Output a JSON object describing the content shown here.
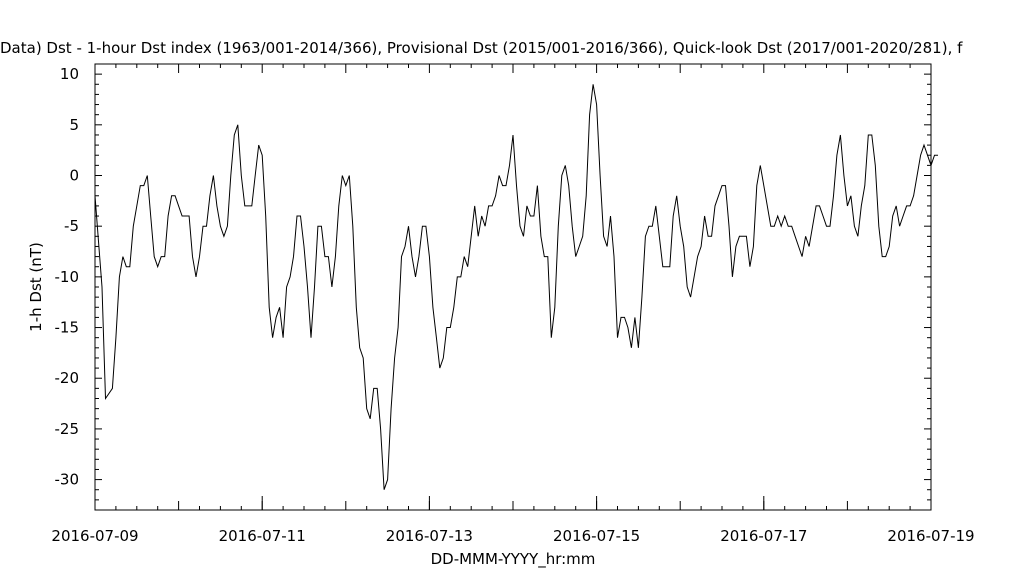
{
  "chart_data": {
    "type": "line",
    "title": "Data)  Dst - 1-hour Dst index (1963/001-2014/366), Provisional Dst (2015/001-2016/366), Quick-look Dst (2017/001-2020/281), f",
    "xlabel": "DD-MMM-YYYY_hr:mm",
    "ylabel": "1-h Dst (nT)",
    "x_range": [
      "2016-07-09",
      "2016-07-19"
    ],
    "ylim": [
      -33,
      11
    ],
    "x_ticks": [
      "2016-07-09",
      "2016-07-11",
      "2016-07-13",
      "2016-07-15",
      "2016-07-17",
      "2016-07-19"
    ],
    "y_ticks": [
      10,
      5,
      0,
      -5,
      -10,
      -15,
      -20,
      -25,
      -30
    ],
    "grid": false,
    "series": [
      {
        "color": "#000000",
        "points": [
          [
            "2016-07-09 00:00",
            -2
          ],
          [
            "2016-07-09 02:00",
            -11
          ],
          [
            "2016-07-09 03:00",
            -22
          ],
          [
            "2016-07-09 05:00",
            -21
          ],
          [
            "2016-07-09 06:00",
            -16
          ],
          [
            "2016-07-09 07:00",
            -10
          ],
          [
            "2016-07-09 08:00",
            -8
          ],
          [
            "2016-07-09 09:00",
            -9
          ],
          [
            "2016-07-09 10:00",
            -9
          ],
          [
            "2016-07-09 11:00",
            -5
          ],
          [
            "2016-07-09 12:00",
            -3
          ],
          [
            "2016-07-09 13:00",
            -1
          ],
          [
            "2016-07-09 14:00",
            -1
          ],
          [
            "2016-07-09 15:00",
            0
          ],
          [
            "2016-07-09 16:00",
            -4
          ],
          [
            "2016-07-09 17:00",
            -8
          ],
          [
            "2016-07-09 18:00",
            -9
          ],
          [
            "2016-07-09 19:00",
            -8
          ],
          [
            "2016-07-09 20:00",
            -8
          ],
          [
            "2016-07-09 21:00",
            -4
          ],
          [
            "2016-07-09 22:00",
            -2
          ],
          [
            "2016-07-09 23:00",
            -2
          ],
          [
            "2016-07-10 00:00",
            -3
          ],
          [
            "2016-07-10 01:00",
            -4
          ],
          [
            "2016-07-10 02:00",
            -4
          ],
          [
            "2016-07-10 03:00",
            -4
          ],
          [
            "2016-07-10 04:00",
            -8
          ],
          [
            "2016-07-10 05:00",
            -10
          ],
          [
            "2016-07-10 06:00",
            -8
          ],
          [
            "2016-07-10 07:00",
            -5
          ],
          [
            "2016-07-10 08:00",
            -5
          ],
          [
            "2016-07-10 09:00",
            -2
          ],
          [
            "2016-07-10 10:00",
            0
          ],
          [
            "2016-07-10 11:00",
            -3
          ],
          [
            "2016-07-10 12:00",
            -5
          ],
          [
            "2016-07-10 13:00",
            -6
          ],
          [
            "2016-07-10 14:00",
            -5
          ],
          [
            "2016-07-10 15:00",
            0
          ],
          [
            "2016-07-10 16:00",
            4
          ],
          [
            "2016-07-10 17:00",
            5
          ],
          [
            "2016-07-10 18:00",
            0
          ],
          [
            "2016-07-10 19:00",
            -3
          ],
          [
            "2016-07-10 20:00",
            -3
          ],
          [
            "2016-07-10 21:00",
            -3
          ],
          [
            "2016-07-10 22:00",
            0
          ],
          [
            "2016-07-10 23:00",
            3
          ],
          [
            "2016-07-11 00:00",
            2
          ],
          [
            "2016-07-11 01:00",
            -4
          ],
          [
            "2016-07-11 02:00",
            -13
          ],
          [
            "2016-07-11 03:00",
            -16
          ],
          [
            "2016-07-11 04:00",
            -14
          ],
          [
            "2016-07-11 05:00",
            -13
          ],
          [
            "2016-07-11 06:00",
            -16
          ],
          [
            "2016-07-11 07:00",
            -11
          ],
          [
            "2016-07-11 08:00",
            -10
          ],
          [
            "2016-07-11 09:00",
            -8
          ],
          [
            "2016-07-11 10:00",
            -4
          ],
          [
            "2016-07-11 11:00",
            -4
          ],
          [
            "2016-07-11 12:00",
            -7
          ],
          [
            "2016-07-11 13:00",
            -11
          ],
          [
            "2016-07-11 14:00",
            -16
          ],
          [
            "2016-07-11 15:00",
            -11
          ],
          [
            "2016-07-11 16:00",
            -5
          ],
          [
            "2016-07-11 17:00",
            -5
          ],
          [
            "2016-07-11 18:00",
            -8
          ],
          [
            "2016-07-11 19:00",
            -8
          ],
          [
            "2016-07-11 20:00",
            -11
          ],
          [
            "2016-07-11 21:00",
            -8
          ],
          [
            "2016-07-11 22:00",
            -3
          ],
          [
            "2016-07-11 23:00",
            0
          ],
          [
            "2016-07-12 00:00",
            -1
          ],
          [
            "2016-07-12 01:00",
            0
          ],
          [
            "2016-07-12 02:00",
            -5
          ],
          [
            "2016-07-12 03:00",
            -13
          ],
          [
            "2016-07-12 04:00",
            -17
          ],
          [
            "2016-07-12 05:00",
            -18
          ],
          [
            "2016-07-12 06:00",
            -23
          ],
          [
            "2016-07-12 07:00",
            -24
          ],
          [
            "2016-07-12 08:00",
            -21
          ],
          [
            "2016-07-12 09:00",
            -21
          ],
          [
            "2016-07-12 10:00",
            -25
          ],
          [
            "2016-07-12 11:00",
            -31
          ],
          [
            "2016-07-12 12:00",
            -30
          ],
          [
            "2016-07-12 13:00",
            -23
          ],
          [
            "2016-07-12 14:00",
            -18
          ],
          [
            "2016-07-12 15:00",
            -15
          ],
          [
            "2016-07-12 16:00",
            -8
          ],
          [
            "2016-07-12 17:00",
            -7
          ],
          [
            "2016-07-12 18:00",
            -5
          ],
          [
            "2016-07-12 19:00",
            -8
          ],
          [
            "2016-07-12 20:00",
            -10
          ],
          [
            "2016-07-12 21:00",
            -8
          ],
          [
            "2016-07-12 22:00",
            -5
          ],
          [
            "2016-07-12 23:00",
            -5
          ],
          [
            "2016-07-13 00:00",
            -8
          ],
          [
            "2016-07-13 01:00",
            -13
          ],
          [
            "2016-07-13 02:00",
            -16
          ],
          [
            "2016-07-13 03:00",
            -19
          ],
          [
            "2016-07-13 04:00",
            -18
          ],
          [
            "2016-07-13 05:00",
            -15
          ],
          [
            "2016-07-13 06:00",
            -15
          ],
          [
            "2016-07-13 07:00",
            -13
          ],
          [
            "2016-07-13 08:00",
            -10
          ],
          [
            "2016-07-13 09:00",
            -10
          ],
          [
            "2016-07-13 10:00",
            -8
          ],
          [
            "2016-07-13 11:00",
            -9
          ],
          [
            "2016-07-13 12:00",
            -6
          ],
          [
            "2016-07-13 13:00",
            -3
          ],
          [
            "2016-07-13 14:00",
            -6
          ],
          [
            "2016-07-13 15:00",
            -4
          ],
          [
            "2016-07-13 16:00",
            -5
          ],
          [
            "2016-07-13 17:00",
            -3
          ],
          [
            "2016-07-13 18:00",
            -3
          ],
          [
            "2016-07-13 19:00",
            -2
          ],
          [
            "2016-07-13 20:00",
            0
          ],
          [
            "2016-07-13 21:00",
            -1
          ],
          [
            "2016-07-13 22:00",
            -1
          ],
          [
            "2016-07-13 23:00",
            1
          ],
          [
            "2016-07-14 00:00",
            4
          ],
          [
            "2016-07-14 01:00",
            -1
          ],
          [
            "2016-07-14 02:00",
            -5
          ],
          [
            "2016-07-14 03:00",
            -6
          ],
          [
            "2016-07-14 04:00",
            -3
          ],
          [
            "2016-07-14 05:00",
            -4
          ],
          [
            "2016-07-14 06:00",
            -4
          ],
          [
            "2016-07-14 07:00",
            -1
          ],
          [
            "2016-07-14 08:00",
            -6
          ],
          [
            "2016-07-14 09:00",
            -8
          ],
          [
            "2016-07-14 10:00",
            -8
          ],
          [
            "2016-07-14 11:00",
            -16
          ],
          [
            "2016-07-14 12:00",
            -13
          ],
          [
            "2016-07-14 13:00",
            -5
          ],
          [
            "2016-07-14 14:00",
            0
          ],
          [
            "2016-07-14 15:00",
            1
          ],
          [
            "2016-07-14 16:00",
            -1
          ],
          [
            "2016-07-14 17:00",
            -5
          ],
          [
            "2016-07-14 18:00",
            -8
          ],
          [
            "2016-07-14 19:00",
            -7
          ],
          [
            "2016-07-14 20:00",
            -6
          ],
          [
            "2016-07-14 21:00",
            -2
          ],
          [
            "2016-07-14 22:00",
            6
          ],
          [
            "2016-07-14 23:00",
            9
          ],
          [
            "2016-07-15 00:00",
            7
          ],
          [
            "2016-07-15 01:00",
            0
          ],
          [
            "2016-07-15 02:00",
            -6
          ],
          [
            "2016-07-15 03:00",
            -7
          ],
          [
            "2016-07-15 04:00",
            -4
          ],
          [
            "2016-07-15 05:00",
            -8
          ],
          [
            "2016-07-15 06:00",
            -16
          ],
          [
            "2016-07-15 07:00",
            -14
          ],
          [
            "2016-07-15 08:00",
            -14
          ],
          [
            "2016-07-15 09:00",
            -15
          ],
          [
            "2016-07-15 10:00",
            -17
          ],
          [
            "2016-07-15 11:00",
            -14
          ],
          [
            "2016-07-15 12:00",
            -17
          ],
          [
            "2016-07-15 13:00",
            -12
          ],
          [
            "2016-07-15 14:00",
            -6
          ],
          [
            "2016-07-15 15:00",
            -5
          ],
          [
            "2016-07-15 16:00",
            -5
          ],
          [
            "2016-07-15 17:00",
            -3
          ],
          [
            "2016-07-15 18:00",
            -6
          ],
          [
            "2016-07-15 19:00",
            -9
          ],
          [
            "2016-07-15 20:00",
            -9
          ],
          [
            "2016-07-15 21:00",
            -9
          ],
          [
            "2016-07-15 22:00",
            -4
          ],
          [
            "2016-07-15 23:00",
            -2
          ],
          [
            "2016-07-16 00:00",
            -5
          ],
          [
            "2016-07-16 01:00",
            -7
          ],
          [
            "2016-07-16 02:00",
            -11
          ],
          [
            "2016-07-16 03:00",
            -12
          ],
          [
            "2016-07-16 04:00",
            -10
          ],
          [
            "2016-07-16 05:00",
            -8
          ],
          [
            "2016-07-16 06:00",
            -7
          ],
          [
            "2016-07-16 07:00",
            -4
          ],
          [
            "2016-07-16 08:00",
            -6
          ],
          [
            "2016-07-16 09:00",
            -6
          ],
          [
            "2016-07-16 10:00",
            -3
          ],
          [
            "2016-07-16 11:00",
            -2
          ],
          [
            "2016-07-16 12:00",
            -1
          ],
          [
            "2016-07-16 13:00",
            -1
          ],
          [
            "2016-07-16 14:00",
            -5
          ],
          [
            "2016-07-16 15:00",
            -10
          ],
          [
            "2016-07-16 16:00",
            -7
          ],
          [
            "2016-07-16 17:00",
            -6
          ],
          [
            "2016-07-16 18:00",
            -6
          ],
          [
            "2016-07-16 19:00",
            -6
          ],
          [
            "2016-07-16 20:00",
            -9
          ],
          [
            "2016-07-16 21:00",
            -7
          ],
          [
            "2016-07-16 22:00",
            -1
          ],
          [
            "2016-07-16 23:00",
            1
          ],
          [
            "2016-07-17 00:00",
            -1
          ],
          [
            "2016-07-17 01:00",
            -3
          ],
          [
            "2016-07-17 02:00",
            -5
          ],
          [
            "2016-07-17 03:00",
            -5
          ],
          [
            "2016-07-17 04:00",
            -4
          ],
          [
            "2016-07-17 05:00",
            -5
          ],
          [
            "2016-07-17 06:00",
            -4
          ],
          [
            "2016-07-17 07:00",
            -5
          ],
          [
            "2016-07-17 08:00",
            -5
          ],
          [
            "2016-07-17 09:00",
            -6
          ],
          [
            "2016-07-17 10:00",
            -7
          ],
          [
            "2016-07-17 11:00",
            -8
          ],
          [
            "2016-07-17 12:00",
            -6
          ],
          [
            "2016-07-17 13:00",
            -7
          ],
          [
            "2016-07-17 14:00",
            -5
          ],
          [
            "2016-07-17 15:00",
            -3
          ],
          [
            "2016-07-17 16:00",
            -3
          ],
          [
            "2016-07-17 17:00",
            -4
          ],
          [
            "2016-07-17 18:00",
            -5
          ],
          [
            "2016-07-17 19:00",
            -5
          ],
          [
            "2016-07-17 20:00",
            -2
          ],
          [
            "2016-07-17 21:00",
            2
          ],
          [
            "2016-07-17 22:00",
            4
          ],
          [
            "2016-07-17 23:00",
            0
          ],
          [
            "2016-07-18 00:00",
            -3
          ],
          [
            "2016-07-18 01:00",
            -2
          ],
          [
            "2016-07-18 02:00",
            -5
          ],
          [
            "2016-07-18 03:00",
            -6
          ],
          [
            "2016-07-18 04:00",
            -3
          ],
          [
            "2016-07-18 05:00",
            -1
          ],
          [
            "2016-07-18 06:00",
            4
          ],
          [
            "2016-07-18 07:00",
            4
          ],
          [
            "2016-07-18 08:00",
            1
          ],
          [
            "2016-07-18 09:00",
            -5
          ],
          [
            "2016-07-18 10:00",
            -8
          ],
          [
            "2016-07-18 11:00",
            -8
          ],
          [
            "2016-07-18 12:00",
            -7
          ],
          [
            "2016-07-18 13:00",
            -4
          ],
          [
            "2016-07-18 14:00",
            -3
          ],
          [
            "2016-07-18 15:00",
            -5
          ],
          [
            "2016-07-18 16:00",
            -4
          ],
          [
            "2016-07-18 17:00",
            -3
          ],
          [
            "2016-07-18 18:00",
            -3
          ],
          [
            "2016-07-18 19:00",
            -2
          ],
          [
            "2016-07-18 20:00",
            0
          ],
          [
            "2016-07-18 21:00",
            2
          ],
          [
            "2016-07-18 22:00",
            3
          ],
          [
            "2016-07-18 23:00",
            2
          ],
          [
            "2016-07-19 00:00",
            1
          ],
          [
            "2016-07-19 01:00",
            2
          ],
          [
            "2016-07-19 02:00",
            2
          ]
        ]
      }
    ]
  }
}
